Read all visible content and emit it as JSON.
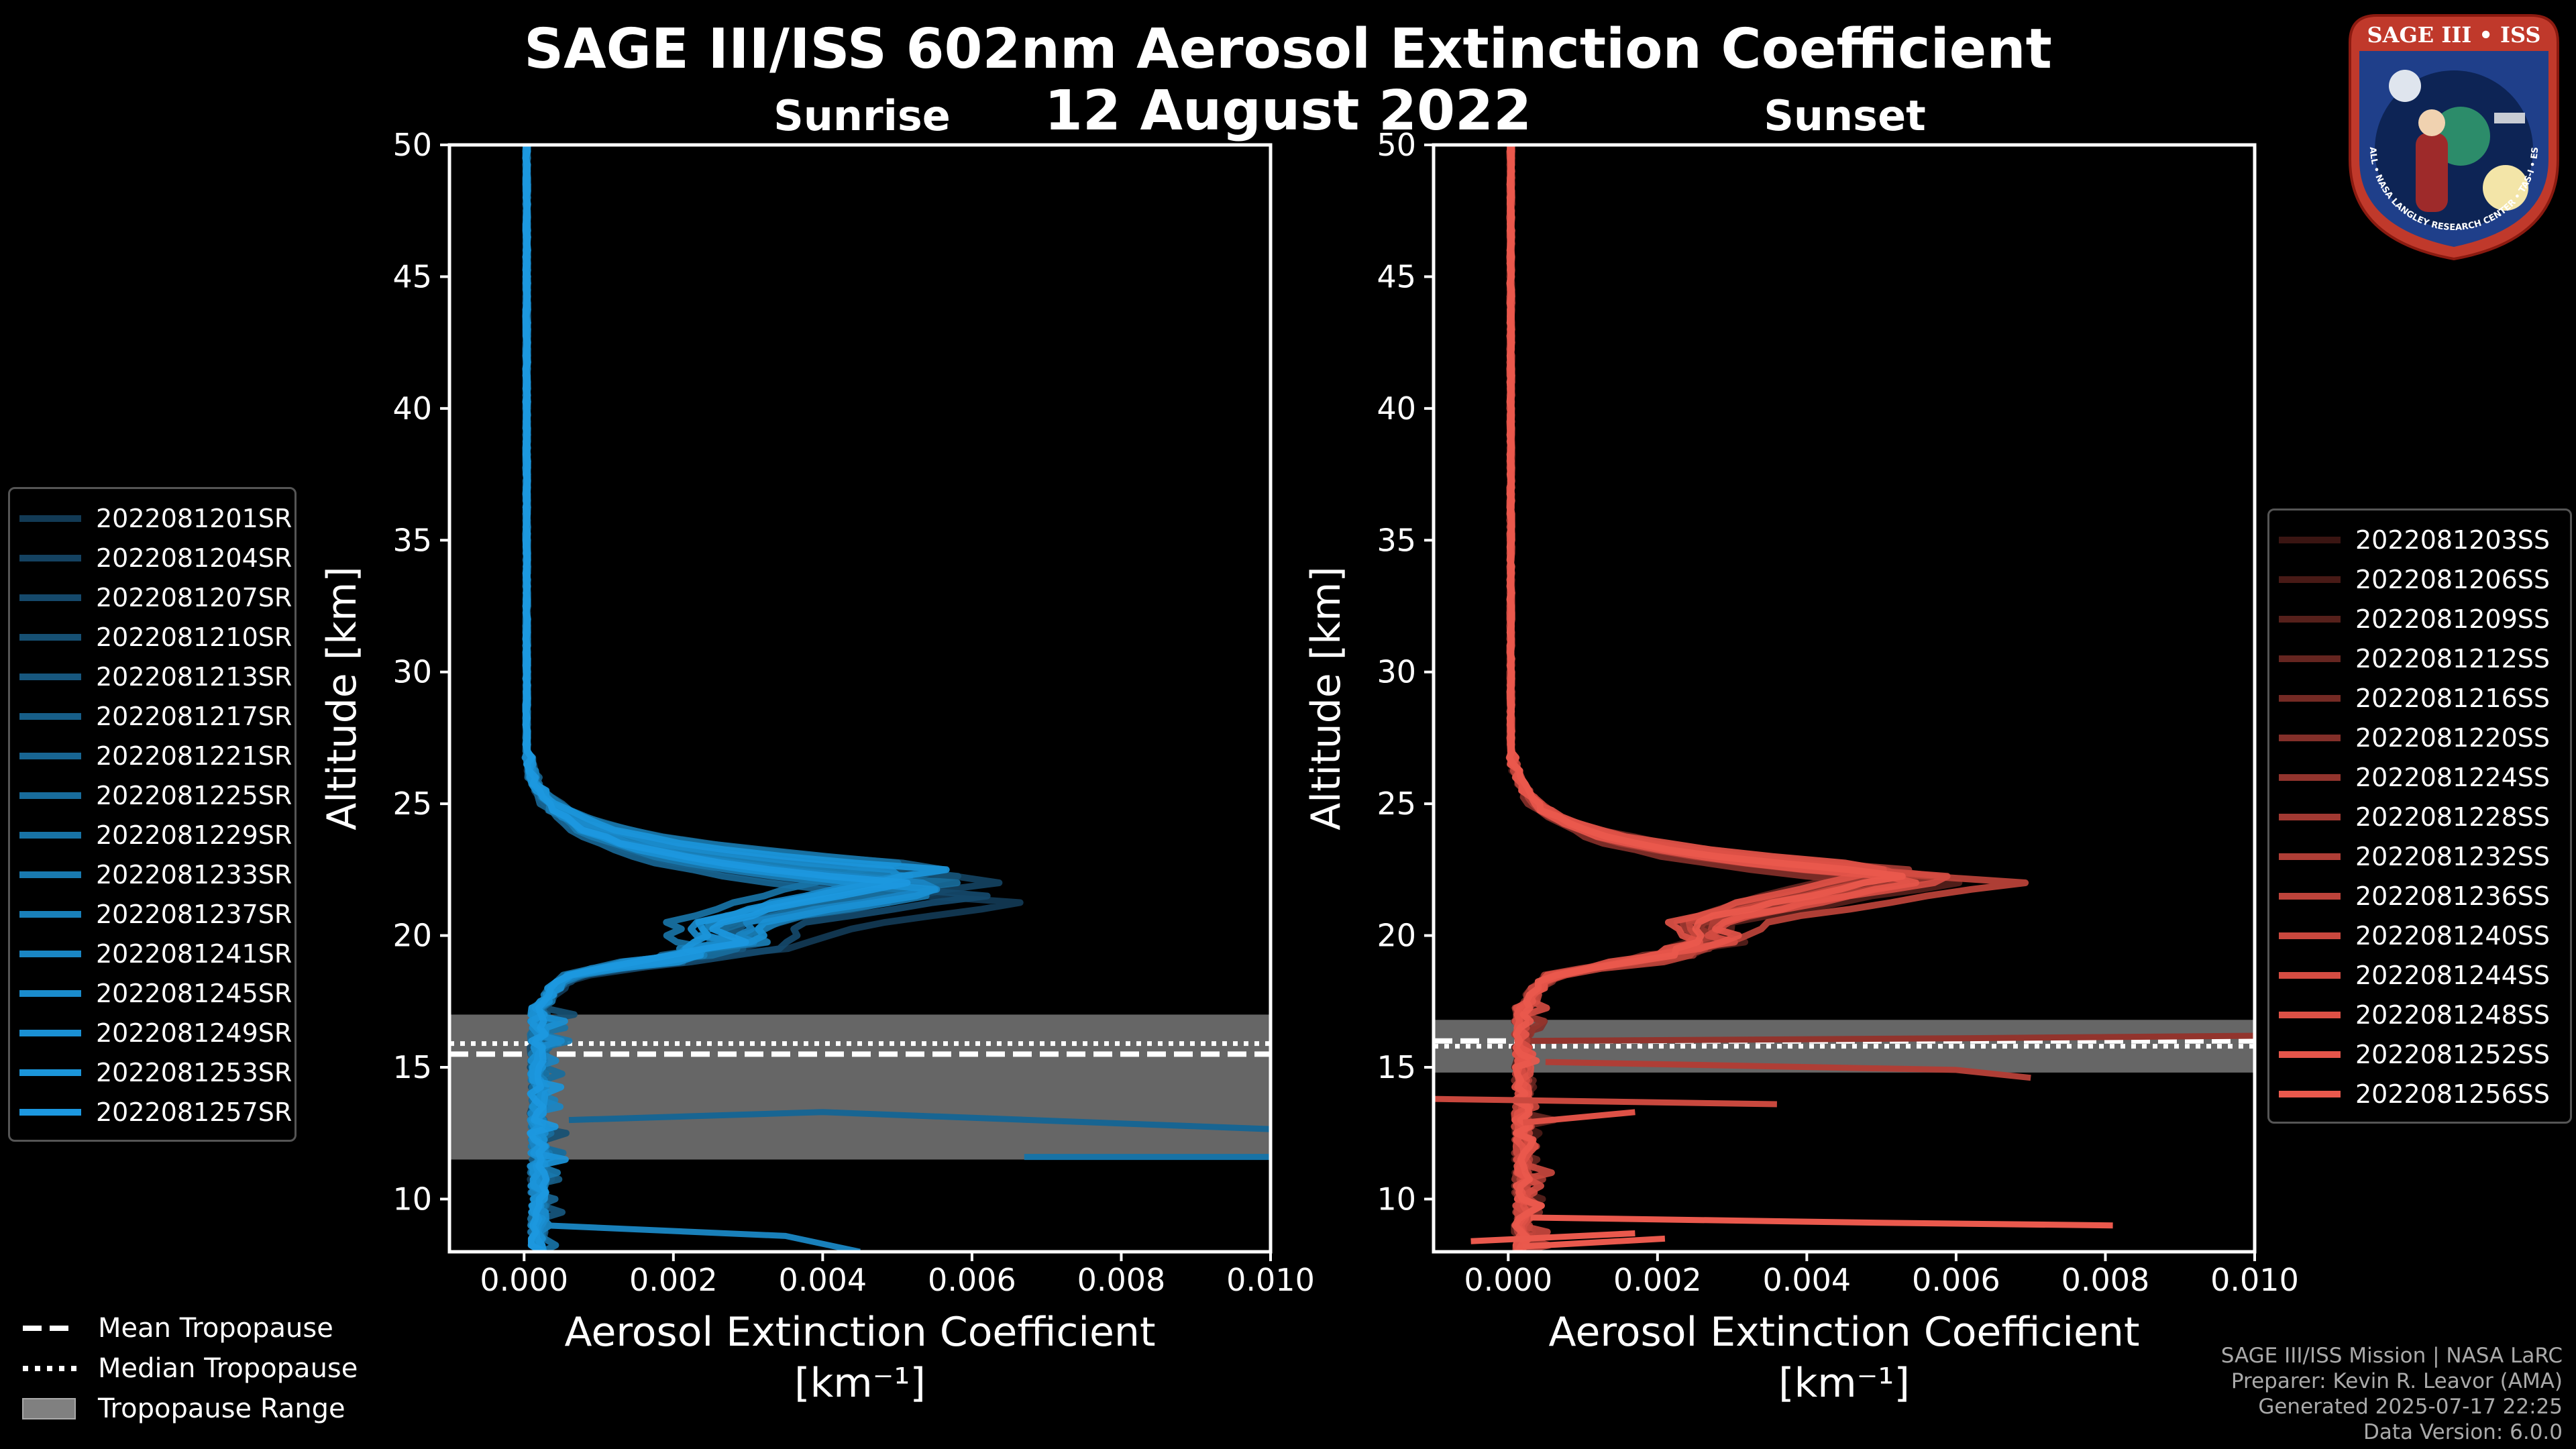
{
  "header": {
    "title_line1": "SAGE III/ISS 602nm Aerosol Extinction Coefficient",
    "title_line2": "12 August 2022",
    "left_subtitle": "Sunrise",
    "right_subtitle": "Sunset"
  },
  "logo": {
    "top_text": "SAGE III • ISS",
    "ring_text": "BALL • NASA LANGLEY RESEARCH CENTER • TAS-I • ESA"
  },
  "colors": {
    "sunrise": "#1a8fd4",
    "sunset": "#e8574a",
    "tropopause": "#808080"
  },
  "chart_data": [
    {
      "type": "line",
      "title": "Sunrise",
      "xlabel": "Aerosol Extinction Coefficient",
      "xunit": "[km⁻¹]",
      "ylabel": "Altitude [km]",
      "xlim": [
        -0.001,
        0.01
      ],
      "ylim": [
        8,
        50
      ],
      "xticks": [
        "0.000",
        "0.002",
        "0.004",
        "0.006",
        "0.008",
        "0.010"
      ],
      "yticks": [
        "10",
        "15",
        "20",
        "25",
        "30",
        "35",
        "40",
        "45",
        "50"
      ],
      "tropopause": {
        "mean": 15.5,
        "median": 15.9,
        "range": [
          11.5,
          17.0
        ]
      },
      "outliers": [
        {
          "alt": [
            13.0,
            13.3,
            12.6
          ],
          "val": [
            0.0006,
            0.004,
            0.0105
          ]
        },
        {
          "alt": [
            11.6,
            11.6
          ],
          "val": [
            0.0067,
            0.0105
          ]
        },
        {
          "alt": [
            9.0,
            8.6,
            8.0
          ],
          "val": [
            0.0003,
            0.0035,
            0.0045
          ]
        }
      ],
      "series": [
        {
          "name": "2022081201SR",
          "color": "#123a55",
          "peak_alt": 21.2,
          "peak_val": 0.0068
        },
        {
          "name": "2022081204SR",
          "color": "#144261",
          "peak_alt": 22.1,
          "peak_val": 0.0066
        },
        {
          "name": "2022081207SR",
          "color": "#15496b",
          "peak_alt": 21.5,
          "peak_val": 0.0062
        },
        {
          "name": "2022081210SR",
          "color": "#165073",
          "peak_alt": 22.3,
          "peak_val": 0.006
        },
        {
          "name": "2022081213SR",
          "color": "#17577e",
          "peak_alt": 21.8,
          "peak_val": 0.0055
        },
        {
          "name": "2022081217SR",
          "color": "#175e88",
          "peak_alt": 22.6,
          "peak_val": 0.0059
        },
        {
          "name": "2022081221SR",
          "color": "#186592",
          "peak_alt": 21.4,
          "peak_val": 0.0052
        },
        {
          "name": "2022081225SR",
          "color": "#186c9c",
          "peak_alt": 22.0,
          "peak_val": 0.0057
        },
        {
          "name": "2022081229SR",
          "color": "#1873a6",
          "peak_alt": 22.8,
          "peak_val": 0.005
        },
        {
          "name": "2022081233SR",
          "color": "#197ab0",
          "peak_alt": 21.6,
          "peak_val": 0.0056
        },
        {
          "name": "2022081237SR",
          "color": "#1980ba",
          "peak_alt": 22.2,
          "peak_val": 0.0054
        },
        {
          "name": "2022081241SR",
          "color": "#1a86c4",
          "peak_alt": 21.9,
          "peak_val": 0.0058
        },
        {
          "name": "2022081245SR",
          "color": "#1a8bcc",
          "peak_alt": 22.4,
          "peak_val": 0.0053
        },
        {
          "name": "2022081249SR",
          "color": "#1a90d4",
          "peak_alt": 21.7,
          "peak_val": 0.0057
        },
        {
          "name": "2022081253SR",
          "color": "#1b95da",
          "peak_alt": 22.5,
          "peak_val": 0.0056
        },
        {
          "name": "2022081257SR",
          "color": "#1c98e0",
          "peak_alt": 22.0,
          "peak_val": 0.0051
        }
      ]
    },
    {
      "type": "line",
      "title": "Sunset",
      "xlabel": "Aerosol Extinction Coefficient",
      "xunit": "[km⁻¹]",
      "ylabel": "Altitude [km]",
      "xlim": [
        -0.001,
        0.01
      ],
      "ylim": [
        8,
        50
      ],
      "xticks": [
        "0.000",
        "0.002",
        "0.004",
        "0.006",
        "0.008",
        "0.010"
      ],
      "yticks": [
        "10",
        "15",
        "20",
        "25",
        "30",
        "35",
        "40",
        "45",
        "50"
      ],
      "tropopause": {
        "mean": 16.0,
        "median": 15.8,
        "range": [
          14.8,
          16.8
        ]
      },
      "outliers": [
        {
          "alt": [
            16.0,
            16.1,
            16.2
          ],
          "val": [
            0.0003,
            0.006,
            0.0101
          ]
        },
        {
          "alt": [
            15.2,
            14.9,
            14.6
          ],
          "val": [
            0.0005,
            0.006,
            0.007
          ]
        },
        {
          "alt": [
            13.8,
            13.6
          ],
          "val": [
            -0.001,
            0.0036
          ]
        },
        {
          "alt": [
            12.9,
            13.3
          ],
          "val": [
            0.0002,
            0.0017
          ]
        },
        {
          "alt": [
            9.3,
            9.1,
            9.0
          ],
          "val": [
            0.0003,
            0.005,
            0.0081
          ]
        },
        {
          "alt": [
            8.4,
            8.7
          ],
          "val": [
            -0.0005,
            0.0017
          ]
        },
        {
          "alt": [
            8.2,
            8.5
          ],
          "val": [
            0.0002,
            0.0021
          ]
        }
      ],
      "series": [
        {
          "name": "2022081203SS",
          "color": "#3a1512",
          "peak_alt": 22.1,
          "peak_val": 0.0058
        },
        {
          "name": "2022081206SS",
          "color": "#481a16",
          "peak_alt": 22.4,
          "peak_val": 0.0055
        },
        {
          "name": "2022081209SS",
          "color": "#56201b",
          "peak_alt": 22.0,
          "peak_val": 0.006
        },
        {
          "name": "2022081212SS",
          "color": "#652520",
          "peak_alt": 22.6,
          "peak_val": 0.0052
        },
        {
          "name": "2022081216SS",
          "color": "#742a24",
          "peak_alt": 22.2,
          "peak_val": 0.0057
        },
        {
          "name": "2022081220SS",
          "color": "#832f29",
          "peak_alt": 21.9,
          "peak_val": 0.0054
        },
        {
          "name": "2022081224SS",
          "color": "#92342d",
          "peak_alt": 22.3,
          "peak_val": 0.0059
        },
        {
          "name": "2022081228SS",
          "color": "#a13932",
          "peak_alt": 22.5,
          "peak_val": 0.0053
        },
        {
          "name": "2022081232SS",
          "color": "#af3e36",
          "peak_alt": 22.1,
          "peak_val": 0.0056
        },
        {
          "name": "2022081236SS",
          "color": "#bd433a",
          "peak_alt": 22.0,
          "peak_val": 0.0069
        },
        {
          "name": "2022081240SS",
          "color": "#c9483e",
          "peak_alt": 22.4,
          "peak_val": 0.0055
        },
        {
          "name": "2022081244SS",
          "color": "#d44c42",
          "peak_alt": 22.2,
          "peak_val": 0.0061
        },
        {
          "name": "2022081248SS",
          "color": "#de5146",
          "peak_alt": 22.6,
          "peak_val": 0.0052
        },
        {
          "name": "2022081252SS",
          "color": "#e5554a",
          "peak_alt": 22.1,
          "peak_val": 0.0057
        },
        {
          "name": "2022081256SS",
          "color": "#ea594d",
          "peak_alt": 22.3,
          "peak_val": 0.0054
        }
      ]
    }
  ],
  "tropopause_legend": {
    "mean": "Mean Tropopause",
    "median": "Median Tropopause",
    "range": "Tropopause Range"
  },
  "footer": {
    "line1": "SAGE III/ISS Mission | NASA LaRC",
    "line2": "Preparer: Kevin R. Leavor (AMA)",
    "line3": "Generated 2025-07-17 22:25",
    "line4": "Data Version: 6.0.0"
  }
}
